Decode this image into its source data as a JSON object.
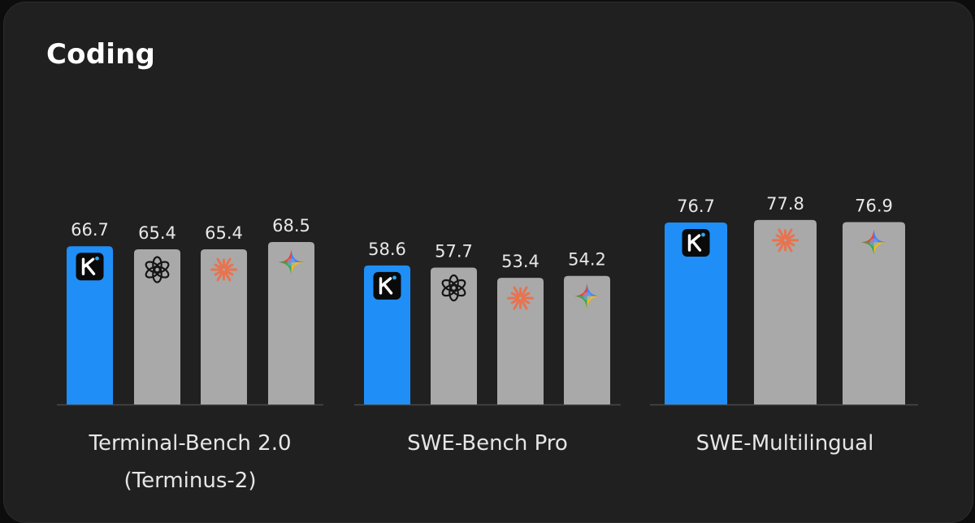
{
  "chart_data": {
    "type": "bar",
    "title": "Coding",
    "colors": {
      "highlight": "#1f8ff7",
      "other": "#a9a9a9",
      "baseline": "#4a4a4a"
    },
    "groups": [
      {
        "label": [
          "Terminal-Bench 2.0",
          "(Terminus-2)"
        ],
        "bars": [
          {
            "value": 66.7,
            "label": "66.7",
            "icon": "kimi-k-logo-icon",
            "highlight": true
          },
          {
            "value": 65.4,
            "label": "65.4",
            "icon": "openai-logo-icon",
            "highlight": false
          },
          {
            "value": 65.4,
            "label": "65.4",
            "icon": "claude-starburst-icon",
            "highlight": false
          },
          {
            "value": 68.5,
            "label": "68.5",
            "icon": "gemini-sparkle-icon",
            "highlight": false
          }
        ]
      },
      {
        "label": [
          "SWE-Bench Pro"
        ],
        "bars": [
          {
            "value": 58.6,
            "label": "58.6",
            "icon": "kimi-k-logo-icon",
            "highlight": true
          },
          {
            "value": 57.7,
            "label": "57.7",
            "icon": "openai-logo-icon",
            "highlight": false
          },
          {
            "value": 53.4,
            "label": "53.4",
            "icon": "claude-starburst-icon",
            "highlight": false
          },
          {
            "value": 54.2,
            "label": "54.2",
            "icon": "gemini-sparkle-icon",
            "highlight": false
          }
        ]
      },
      {
        "label": [
          "SWE-Multilingual"
        ],
        "bars": [
          {
            "value": 76.7,
            "label": "76.7",
            "icon": "kimi-k-logo-icon",
            "highlight": true
          },
          {
            "value": 77.8,
            "label": "77.8",
            "icon": "claude-starburst-icon",
            "highlight": false
          },
          {
            "value": 76.9,
            "label": "76.9",
            "icon": "gemini-sparkle-icon",
            "highlight": false
          }
        ]
      }
    ]
  }
}
